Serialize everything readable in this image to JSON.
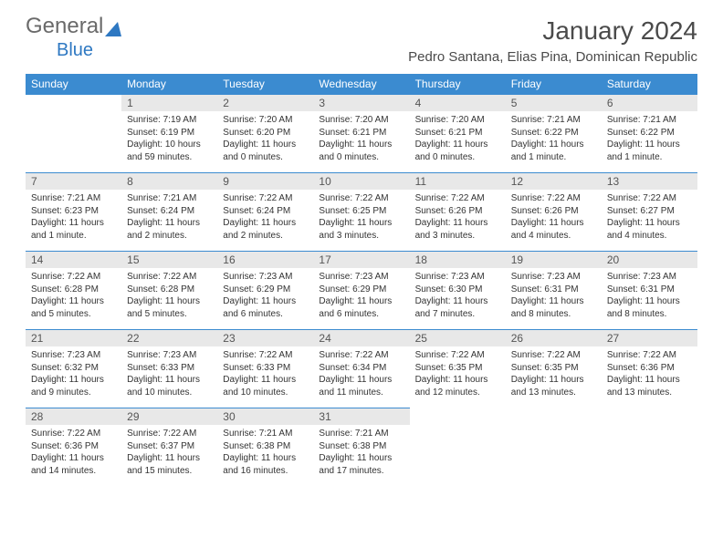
{
  "logo": {
    "general": "General",
    "blue": "Blue"
  },
  "title": "January 2024",
  "location": "Pedro Santana, Elias Pina, Dominican Republic",
  "colors": {
    "header_bg": "#3b8bd0",
    "header_text": "#ffffff",
    "daynum_bg": "#e8e8e8",
    "daynum_text": "#555555",
    "body_text": "#333333",
    "border": "#3b8bd0",
    "logo_general": "#6a6a6a",
    "logo_blue": "#2e78c2",
    "title_color": "#4a4a4a"
  },
  "fonts": {
    "title_size": 28,
    "location_size": 15,
    "header_size": 12,
    "daynum_size": 12,
    "cell_size": 10
  },
  "weekdays": [
    "Sunday",
    "Monday",
    "Tuesday",
    "Wednesday",
    "Thursday",
    "Friday",
    "Saturday"
  ],
  "weeks": [
    [
      null,
      {
        "n": "1",
        "sunrise": "Sunrise: 7:19 AM",
        "sunset": "Sunset: 6:19 PM",
        "daylight": "Daylight: 10 hours and 59 minutes."
      },
      {
        "n": "2",
        "sunrise": "Sunrise: 7:20 AM",
        "sunset": "Sunset: 6:20 PM",
        "daylight": "Daylight: 11 hours and 0 minutes."
      },
      {
        "n": "3",
        "sunrise": "Sunrise: 7:20 AM",
        "sunset": "Sunset: 6:21 PM",
        "daylight": "Daylight: 11 hours and 0 minutes."
      },
      {
        "n": "4",
        "sunrise": "Sunrise: 7:20 AM",
        "sunset": "Sunset: 6:21 PM",
        "daylight": "Daylight: 11 hours and 0 minutes."
      },
      {
        "n": "5",
        "sunrise": "Sunrise: 7:21 AM",
        "sunset": "Sunset: 6:22 PM",
        "daylight": "Daylight: 11 hours and 1 minute."
      },
      {
        "n": "6",
        "sunrise": "Sunrise: 7:21 AM",
        "sunset": "Sunset: 6:22 PM",
        "daylight": "Daylight: 11 hours and 1 minute."
      }
    ],
    [
      {
        "n": "7",
        "sunrise": "Sunrise: 7:21 AM",
        "sunset": "Sunset: 6:23 PM",
        "daylight": "Daylight: 11 hours and 1 minute."
      },
      {
        "n": "8",
        "sunrise": "Sunrise: 7:21 AM",
        "sunset": "Sunset: 6:24 PM",
        "daylight": "Daylight: 11 hours and 2 minutes."
      },
      {
        "n": "9",
        "sunrise": "Sunrise: 7:22 AM",
        "sunset": "Sunset: 6:24 PM",
        "daylight": "Daylight: 11 hours and 2 minutes."
      },
      {
        "n": "10",
        "sunrise": "Sunrise: 7:22 AM",
        "sunset": "Sunset: 6:25 PM",
        "daylight": "Daylight: 11 hours and 3 minutes."
      },
      {
        "n": "11",
        "sunrise": "Sunrise: 7:22 AM",
        "sunset": "Sunset: 6:26 PM",
        "daylight": "Daylight: 11 hours and 3 minutes."
      },
      {
        "n": "12",
        "sunrise": "Sunrise: 7:22 AM",
        "sunset": "Sunset: 6:26 PM",
        "daylight": "Daylight: 11 hours and 4 minutes."
      },
      {
        "n": "13",
        "sunrise": "Sunrise: 7:22 AM",
        "sunset": "Sunset: 6:27 PM",
        "daylight": "Daylight: 11 hours and 4 minutes."
      }
    ],
    [
      {
        "n": "14",
        "sunrise": "Sunrise: 7:22 AM",
        "sunset": "Sunset: 6:28 PM",
        "daylight": "Daylight: 11 hours and 5 minutes."
      },
      {
        "n": "15",
        "sunrise": "Sunrise: 7:22 AM",
        "sunset": "Sunset: 6:28 PM",
        "daylight": "Daylight: 11 hours and 5 minutes."
      },
      {
        "n": "16",
        "sunrise": "Sunrise: 7:23 AM",
        "sunset": "Sunset: 6:29 PM",
        "daylight": "Daylight: 11 hours and 6 minutes."
      },
      {
        "n": "17",
        "sunrise": "Sunrise: 7:23 AM",
        "sunset": "Sunset: 6:29 PM",
        "daylight": "Daylight: 11 hours and 6 minutes."
      },
      {
        "n": "18",
        "sunrise": "Sunrise: 7:23 AM",
        "sunset": "Sunset: 6:30 PM",
        "daylight": "Daylight: 11 hours and 7 minutes."
      },
      {
        "n": "19",
        "sunrise": "Sunrise: 7:23 AM",
        "sunset": "Sunset: 6:31 PM",
        "daylight": "Daylight: 11 hours and 8 minutes."
      },
      {
        "n": "20",
        "sunrise": "Sunrise: 7:23 AM",
        "sunset": "Sunset: 6:31 PM",
        "daylight": "Daylight: 11 hours and 8 minutes."
      }
    ],
    [
      {
        "n": "21",
        "sunrise": "Sunrise: 7:23 AM",
        "sunset": "Sunset: 6:32 PM",
        "daylight": "Daylight: 11 hours and 9 minutes."
      },
      {
        "n": "22",
        "sunrise": "Sunrise: 7:23 AM",
        "sunset": "Sunset: 6:33 PM",
        "daylight": "Daylight: 11 hours and 10 minutes."
      },
      {
        "n": "23",
        "sunrise": "Sunrise: 7:22 AM",
        "sunset": "Sunset: 6:33 PM",
        "daylight": "Daylight: 11 hours and 10 minutes."
      },
      {
        "n": "24",
        "sunrise": "Sunrise: 7:22 AM",
        "sunset": "Sunset: 6:34 PM",
        "daylight": "Daylight: 11 hours and 11 minutes."
      },
      {
        "n": "25",
        "sunrise": "Sunrise: 7:22 AM",
        "sunset": "Sunset: 6:35 PM",
        "daylight": "Daylight: 11 hours and 12 minutes."
      },
      {
        "n": "26",
        "sunrise": "Sunrise: 7:22 AM",
        "sunset": "Sunset: 6:35 PM",
        "daylight": "Daylight: 11 hours and 13 minutes."
      },
      {
        "n": "27",
        "sunrise": "Sunrise: 7:22 AM",
        "sunset": "Sunset: 6:36 PM",
        "daylight": "Daylight: 11 hours and 13 minutes."
      }
    ],
    [
      {
        "n": "28",
        "sunrise": "Sunrise: 7:22 AM",
        "sunset": "Sunset: 6:36 PM",
        "daylight": "Daylight: 11 hours and 14 minutes."
      },
      {
        "n": "29",
        "sunrise": "Sunrise: 7:22 AM",
        "sunset": "Sunset: 6:37 PM",
        "daylight": "Daylight: 11 hours and 15 minutes."
      },
      {
        "n": "30",
        "sunrise": "Sunrise: 7:21 AM",
        "sunset": "Sunset: 6:38 PM",
        "daylight": "Daylight: 11 hours and 16 minutes."
      },
      {
        "n": "31",
        "sunrise": "Sunrise: 7:21 AM",
        "sunset": "Sunset: 6:38 PM",
        "daylight": "Daylight: 11 hours and 17 minutes."
      },
      null,
      null,
      null
    ]
  ]
}
